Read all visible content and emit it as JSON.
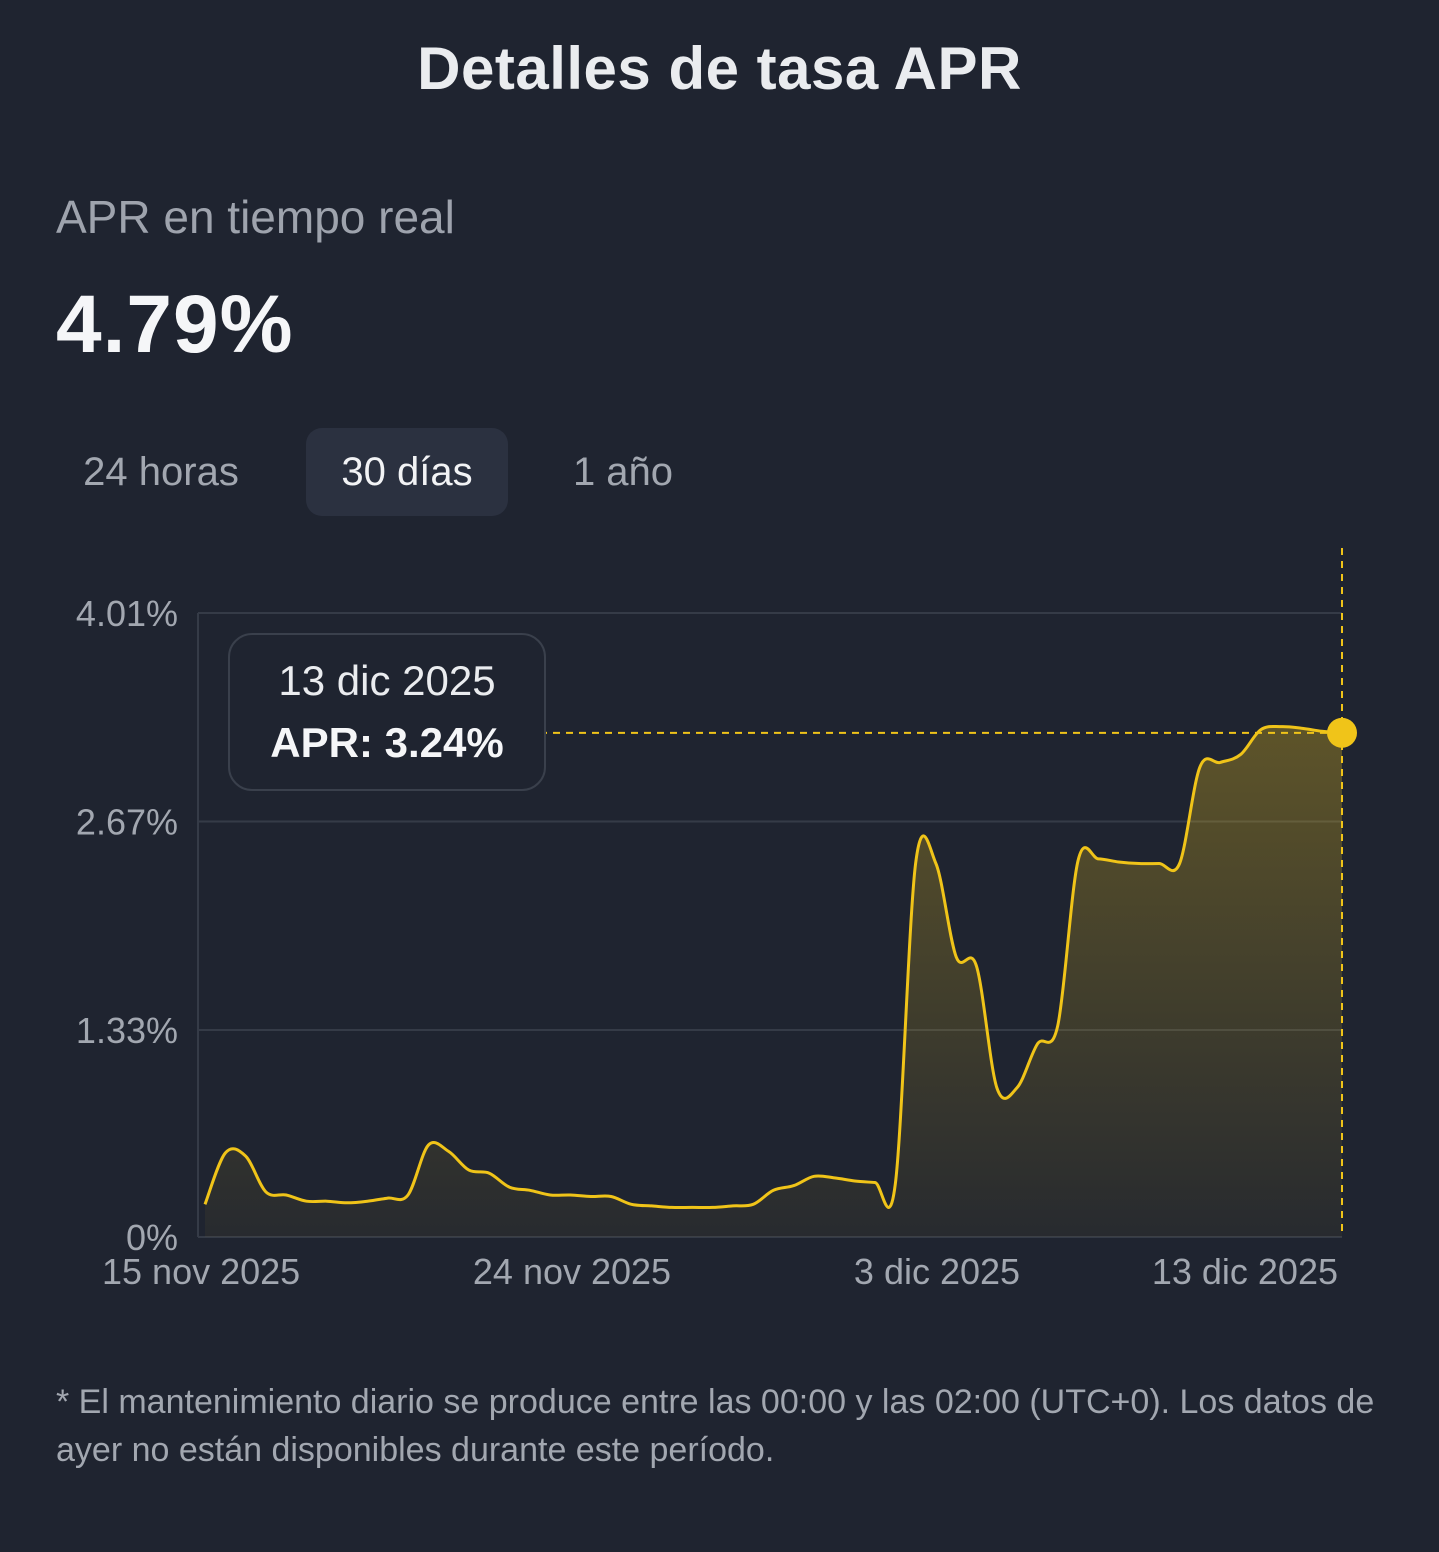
{
  "header": {
    "title": "Detalles de tasa APR"
  },
  "realtime": {
    "label": "APR en tiempo real",
    "value": "4.79%"
  },
  "tabs": [
    {
      "label": "24 horas",
      "active": false
    },
    {
      "label": "30 días",
      "active": true
    },
    {
      "label": "1 año",
      "active": false
    }
  ],
  "tooltip": {
    "date": "13 dic 2025",
    "label": "APR:",
    "value": "3.24%"
  },
  "footnote": "* El mantenimiento diario se produce entre las 00:00 y las 02:00 (UTC+0). Los datos de ayer no están disponibles durante este período.",
  "colors": {
    "background": "#1f2430",
    "line": "#f0c419",
    "grid": "#353b47",
    "axis_text": "#a2a7b0"
  },
  "chart_data": {
    "type": "area",
    "x_start": "15 nov 2025",
    "x_end": "13 dic 2025",
    "x_tick_labels": [
      "15 nov 2025",
      "24 nov 2025",
      "3 dic 2025",
      "13 dic 2025"
    ],
    "x_tick_positions_days": [
      0,
      9,
      18,
      28
    ],
    "y_tick_labels": [
      "0%",
      "1.33%",
      "2.67%",
      "4.01%"
    ],
    "y_tick_values": [
      0,
      1.33,
      2.67,
      4.01
    ],
    "ylim": [
      0,
      4.01
    ],
    "grid": true,
    "highlighted_point": {
      "x": "13 dic 2025",
      "y": 3.24
    },
    "series": [
      {
        "x": [
          "15 nov 2025",
          "15 nov 2025",
          "16 nov 2025",
          "16 nov 2025",
          "17 nov 2025",
          "17 nov 2025",
          "18 nov 2025",
          "18 nov 2025",
          "19 nov 2025",
          "19 nov 2025",
          "20 nov 2025",
          "20 nov 2025",
          "21 nov 2025",
          "21 nov 2025",
          "22 nov 2025",
          "22 nov 2025",
          "23 nov 2025",
          "23 nov 2025",
          "24 nov 2025",
          "24 nov 2025",
          "25 nov 2025",
          "25 nov 2025",
          "26 nov 2025",
          "26 nov 2025",
          "27 nov 2025",
          "27 nov 2025",
          "28 nov 2025",
          "28 nov 2025",
          "29 nov 2025",
          "29 nov 2025",
          "30 nov 2025",
          "30 nov 2025",
          "1 dic 2025",
          "1 dic 2025",
          "2 dic 2025",
          "2 dic 2025",
          "3 dic 2025",
          "3 dic 2025",
          "4 dic 2025",
          "4 dic 2025",
          "5 dic 2025",
          "5 dic 2025",
          "6 dic 2025",
          "6 dic 2025",
          "7 dic 2025",
          "7 dic 2025",
          "8 dic 2025",
          "8 dic 2025",
          "9 dic 2025",
          "9 dic 2025",
          "10 dic 2025",
          "10 dic 2025",
          "11 dic 2025",
          "11 dic 2025",
          "12 dic 2025",
          "12 dic 2025",
          "13 dic 2025"
        ],
        "x_days": [
          0.0,
          0.5,
          1.0,
          1.5,
          2.0,
          2.5,
          3.0,
          3.5,
          4.0,
          4.5,
          5.0,
          5.5,
          6.0,
          6.5,
          7.0,
          7.5,
          8.0,
          8.5,
          9.0,
          9.5,
          10.0,
          10.5,
          11.0,
          11.5,
          12.0,
          12.5,
          13.0,
          13.5,
          14.0,
          14.5,
          15.0,
          15.5,
          16.0,
          16.5,
          17.0,
          17.5,
          18.0,
          18.5,
          19.0,
          19.5,
          20.0,
          20.5,
          21.0,
          21.5,
          22.0,
          22.5,
          23.0,
          23.5,
          24.0,
          24.5,
          25.0,
          25.5,
          26.0,
          26.5,
          27.0,
          27.5,
          28.0
        ],
        "values": [
          0.21,
          0.54,
          0.52,
          0.29,
          0.27,
          0.23,
          0.23,
          0.22,
          0.23,
          0.25,
          0.27,
          0.59,
          0.55,
          0.43,
          0.41,
          0.32,
          0.3,
          0.27,
          0.27,
          0.26,
          0.26,
          0.21,
          0.2,
          0.19,
          0.19,
          0.19,
          0.2,
          0.21,
          0.3,
          0.33,
          0.39,
          0.38,
          0.36,
          0.35,
          0.34,
          2.4,
          2.4,
          1.8,
          1.74,
          0.96,
          0.96,
          1.24,
          1.36,
          2.42,
          2.43,
          2.41,
          2.4,
          2.4,
          2.4,
          3.02,
          3.05,
          3.1,
          3.26,
          3.28,
          3.27,
          3.25,
          3.24
        ],
        "fill": "gradient"
      }
    ]
  }
}
